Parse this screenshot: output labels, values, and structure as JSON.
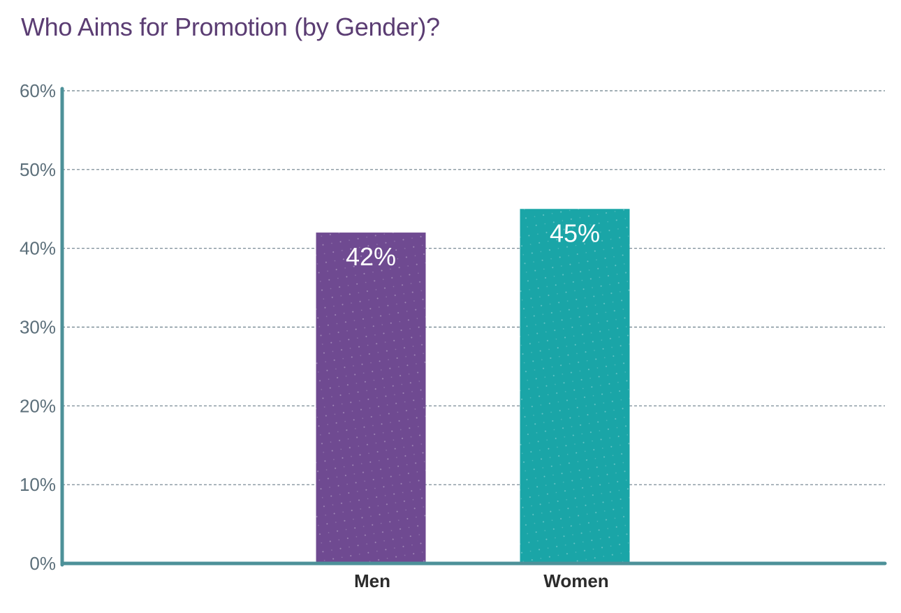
{
  "chart_data": {
    "type": "bar",
    "title": "Who Aims for Promotion (by Gender)?",
    "categories": [
      "Men",
      "Women"
    ],
    "values": [
      42,
      45
    ],
    "data_labels": [
      "42%",
      "45%"
    ],
    "ylim": [
      0,
      60
    ],
    "yticks": [
      0,
      10,
      20,
      30,
      40,
      50,
      60
    ],
    "ytick_labels": [
      "0%",
      "10%",
      "20%",
      "30%",
      "40%",
      "50%",
      "60%"
    ],
    "xlabel": "",
    "ylabel": "",
    "grid": true,
    "colors": {
      "bars": [
        "#6f4a91",
        "#1aa5a7"
      ],
      "axis": "#4d9199",
      "grid": "#6b7f8a",
      "title": "#5b3d73"
    }
  }
}
